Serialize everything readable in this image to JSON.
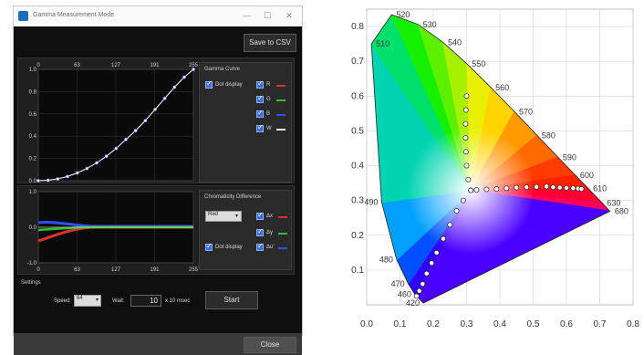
{
  "window": {
    "title": "Gamma Measurement Mode",
    "minimize_glyph": "—",
    "maximize_glyph": "☐",
    "close_glyph": "✕"
  },
  "toolbar": {
    "save_csv_label": "Save to CSV"
  },
  "gamma_plot": {
    "x_ticks": [
      "0",
      "63",
      "127",
      "191",
      "255"
    ],
    "y_ticks": [
      "1.0",
      "0.8",
      "0.6",
      "0.4",
      "0.2",
      "0.0"
    ],
    "series_points": [
      [
        0,
        0
      ],
      [
        16,
        0.004
      ],
      [
        32,
        0.016
      ],
      [
        48,
        0.038
      ],
      [
        64,
        0.07
      ],
      [
        80,
        0.11
      ],
      [
        96,
        0.16
      ],
      [
        112,
        0.22
      ],
      [
        128,
        0.29
      ],
      [
        144,
        0.37
      ],
      [
        160,
        0.45
      ],
      [
        176,
        0.54
      ],
      [
        192,
        0.64
      ],
      [
        208,
        0.74
      ],
      [
        224,
        0.84
      ],
      [
        240,
        0.93
      ],
      [
        255,
        1.0
      ]
    ]
  },
  "gamma_group": {
    "title": "Gamma Curve",
    "dot_display": "Dot display",
    "channels": [
      {
        "label": "R",
        "color": "#e03030"
      },
      {
        "label": "G",
        "color": "#30c030"
      },
      {
        "label": "B",
        "color": "#3050ff"
      },
      {
        "label": "W",
        "color": "#f0f0f0"
      }
    ]
  },
  "diff_plot": {
    "x_ticks": [
      "0",
      "63",
      "127",
      "191",
      "255"
    ],
    "y_ticks": [
      "1.0",
      "0.0",
      "-1.0"
    ]
  },
  "chroma_group": {
    "title": "Chromaticity Difference",
    "color_select": "Red",
    "dot_display": "Dot display",
    "items": [
      {
        "label": "Δx",
        "color": "#e03030"
      },
      {
        "label": "Δy",
        "color": "#30c030"
      },
      {
        "label": "Δu'",
        "color": "#3050ff"
      }
    ]
  },
  "settings": {
    "title": "Settings",
    "speed_label": "Speed:",
    "speed_value": "64",
    "wait_label": "Wait:",
    "wait_value": "10",
    "wait_unit": "x 10 msec",
    "start_label": "Start"
  },
  "footer": {
    "close_label": "Close"
  },
  "chart_data": {
    "type": "scatter",
    "title": "",
    "xlabel": "",
    "ylabel": "",
    "xlim": [
      0.0,
      0.8
    ],
    "ylim": [
      0.0,
      0.85
    ],
    "x_ticks": [
      "0.0",
      "0.1",
      "0.2",
      "0.3",
      "0.4",
      "0.5",
      "0.6",
      "0.7",
      "0.8"
    ],
    "y_ticks": [
      "0.1",
      "0.2",
      "0.3",
      "0.4",
      "0.5",
      "0.6",
      "0.7",
      "0.8"
    ],
    "grid": true,
    "wavelength_labels": [
      {
        "label": "420",
        "x": 0.17,
        "y": 0.005
      },
      {
        "label": "460",
        "x": 0.145,
        "y": 0.03
      },
      {
        "label": "470",
        "x": 0.125,
        "y": 0.06
      },
      {
        "label": "480",
        "x": 0.09,
        "y": 0.13
      },
      {
        "label": "490",
        "x": 0.045,
        "y": 0.295
      },
      {
        "label": "510",
        "x": 0.014,
        "y": 0.75
      },
      {
        "label": "520",
        "x": 0.075,
        "y": 0.834
      },
      {
        "label": "530",
        "x": 0.155,
        "y": 0.806
      },
      {
        "label": "540",
        "x": 0.23,
        "y": 0.754
      },
      {
        "label": "550",
        "x": 0.302,
        "y": 0.692
      },
      {
        "label": "560",
        "x": 0.373,
        "y": 0.625
      },
      {
        "label": "570",
        "x": 0.444,
        "y": 0.555
      },
      {
        "label": "580",
        "x": 0.512,
        "y": 0.487
      },
      {
        "label": "590",
        "x": 0.575,
        "y": 0.424
      },
      {
        "label": "600",
        "x": 0.627,
        "y": 0.372
      },
      {
        "label": "610",
        "x": 0.666,
        "y": 0.334
      },
      {
        "label": "630",
        "x": 0.708,
        "y": 0.292
      },
      {
        "label": "680",
        "x": 0.731,
        "y": 0.269
      }
    ],
    "series": [
      {
        "values": [
          [
            0.313,
            0.329
          ],
          [
            0.33,
            0.33
          ],
          [
            0.36,
            0.332
          ],
          [
            0.39,
            0.333
          ],
          [
            0.42,
            0.335
          ],
          [
            0.45,
            0.337
          ],
          [
            0.48,
            0.338
          ],
          [
            0.51,
            0.339
          ],
          [
            0.54,
            0.34
          ],
          [
            0.56,
            0.338
          ],
          [
            0.58,
            0.337
          ],
          [
            0.6,
            0.336
          ],
          [
            0.62,
            0.335
          ],
          [
            0.635,
            0.334
          ],
          [
            0.645,
            0.333
          ]
        ]
      },
      {
        "values": [
          [
            0.313,
            0.329
          ],
          [
            0.305,
            0.36
          ],
          [
            0.3,
            0.4
          ],
          [
            0.298,
            0.44
          ],
          [
            0.297,
            0.48
          ],
          [
            0.297,
            0.52
          ],
          [
            0.298,
            0.56
          ],
          [
            0.3,
            0.6
          ]
        ]
      },
      {
        "values": [
          [
            0.313,
            0.329
          ],
          [
            0.29,
            0.3
          ],
          [
            0.27,
            0.27
          ],
          [
            0.25,
            0.23
          ],
          [
            0.23,
            0.19
          ],
          [
            0.21,
            0.15
          ],
          [
            0.195,
            0.12
          ],
          [
            0.18,
            0.09
          ],
          [
            0.168,
            0.06
          ],
          [
            0.158,
            0.04
          ],
          [
            0.15,
            0.025
          ]
        ]
      }
    ]
  }
}
